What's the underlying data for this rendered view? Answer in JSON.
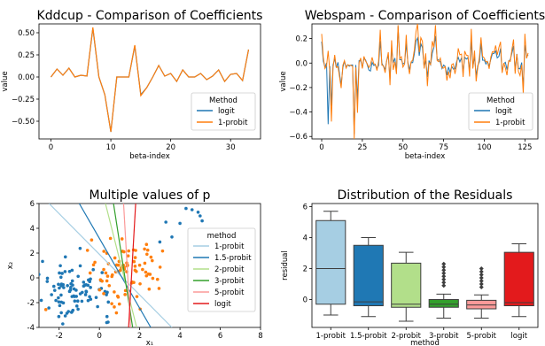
{
  "chart_data": [
    {
      "type": "line",
      "title": "Kddcup - Comparison of Coefficients",
      "xlabel": "beta-index",
      "ylabel": "value",
      "xlim": [
        -2,
        35
      ],
      "ylim": [
        -0.7,
        0.6
      ],
      "xticks": [
        0,
        10,
        20,
        30
      ],
      "yticks": [
        -0.5,
        -0.25,
        0.0,
        0.25,
        0.5
      ],
      "ytick_labels": [
        "−0.50",
        "−0.25",
        "0.00",
        "0.25",
        "0.50"
      ],
      "grid": false,
      "legend": {
        "title": "Method",
        "placement": "lower-right"
      },
      "series": [
        {
          "name": "logit",
          "color": "#1f77b4",
          "values": [
            0.0,
            0.09,
            0.02,
            0.1,
            0.0,
            0.02,
            0.01,
            0.55,
            0.0,
            -0.2,
            -0.62,
            0.0,
            0.0,
            0.0,
            0.35,
            -0.2,
            -0.12,
            0.0,
            0.13,
            0.01,
            0.04,
            -0.05,
            0.08,
            0.0,
            0.0,
            0.04,
            -0.03,
            0.01,
            0.08,
            -0.05,
            0.03,
            0.04,
            -0.04,
            0.31
          ]
        },
        {
          "name": "1-probit",
          "color": "#ff7f0e",
          "values": [
            0.0,
            0.09,
            0.02,
            0.1,
            0.0,
            0.02,
            0.01,
            0.56,
            0.0,
            -0.2,
            -0.62,
            0.0,
            0.0,
            0.0,
            0.36,
            -0.21,
            -0.12,
            0.0,
            0.13,
            0.01,
            0.04,
            -0.05,
            0.08,
            0.0,
            0.0,
            0.04,
            -0.03,
            0.01,
            0.08,
            -0.05,
            0.03,
            0.04,
            -0.04,
            0.31
          ]
        }
      ]
    },
    {
      "type": "line",
      "title": "Webspam - Comparison of Coefficients",
      "xlabel": "beta-index",
      "ylabel": "value",
      "xlim": [
        -6,
        133
      ],
      "ylim": [
        -0.62,
        0.32
      ],
      "xticks": [
        0,
        25,
        50,
        75,
        100,
        125
      ],
      "yticks": [
        -0.6,
        -0.4,
        -0.2,
        0.0,
        0.2
      ],
      "ytick_labels": [
        "−0.6",
        "−0.4",
        "−0.2",
        "0.0",
        "0.2"
      ],
      "grid": false,
      "legend": {
        "title": "Method",
        "placement": "lower-right"
      },
      "series": [
        {
          "name": "logit",
          "color": "#1f77b4"
        },
        {
          "name": "1-probit",
          "color": "#ff7f0e"
        }
      ]
    },
    {
      "type": "scatter",
      "title": "Multiple values of p",
      "xlabel": "x₁",
      "ylabel": "x₂",
      "xlim": [
        -3,
        8
      ],
      "ylim": [
        -4,
        6
      ],
      "xticks": [
        -2,
        0,
        2,
        4,
        6,
        8
      ],
      "yticks": [
        -4,
        -2,
        0,
        2,
        4,
        6
      ],
      "grid": false,
      "legend": {
        "title": "method",
        "placement": "right"
      },
      "point_colors": {
        "class_a": "#1f77b4",
        "class_b": "#ff7f0e"
      },
      "lines": [
        {
          "name": "1-probit",
          "color": "#a6cee3",
          "p1": [
            -2.5,
            6
          ],
          "p2": [
            3.6,
            -4
          ]
        },
        {
          "name": "1.5-probit",
          "color": "#1f78b4",
          "p1": [
            -1.0,
            6
          ],
          "p2": [
            2.55,
            -4
          ]
        },
        {
          "name": "2-probit",
          "color": "#b2df8a",
          "p1": [
            0.3,
            6
          ],
          "p2": [
            1.85,
            -4
          ]
        },
        {
          "name": "3-probit",
          "color": "#33a02c",
          "p1": [
            0.7,
            6
          ],
          "p2": [
            1.65,
            -4
          ]
        },
        {
          "name": "5-probit",
          "color": "#fb9a99",
          "p1": [
            1.2,
            6
          ],
          "p2": [
            1.55,
            -4
          ]
        },
        {
          "name": "logit",
          "color": "#e31a1c",
          "p1": [
            1.8,
            6
          ],
          "p2": [
            1.45,
            -4
          ]
        }
      ]
    },
    {
      "type": "box",
      "title": "Distribution of the Residuals",
      "xlabel": "method",
      "ylabel": "residual",
      "ylim": [
        -1.8,
        6.2
      ],
      "yticks": [
        0,
        2,
        4,
        6
      ],
      "grid": false,
      "categories": [
        "1-probit",
        "1.5-probit",
        "2-probit",
        "3-probit",
        "5-probit",
        "logit"
      ],
      "boxes": [
        {
          "whislo": -1.0,
          "q1": -0.3,
          "med": 2.0,
          "q3": 5.1,
          "whishi": 5.7,
          "color": "#a6cee3",
          "fliers": []
        },
        {
          "whislo": -1.1,
          "q1": -0.4,
          "med": -0.15,
          "q3": 3.5,
          "whishi": 4.0,
          "color": "#1f78b4",
          "fliers": []
        },
        {
          "whislo": -1.4,
          "q1": -0.5,
          "med": -0.3,
          "q3": 2.35,
          "whishi": 3.05,
          "color": "#b2df8a",
          "fliers": []
        },
        {
          "whislo": -1.2,
          "q1": -0.5,
          "med": -0.3,
          "q3": 0.0,
          "whishi": 0.35,
          "color": "#33a02c",
          "fliers": [
            0.9,
            1.1,
            1.3,
            1.5,
            1.7,
            1.9,
            2.1,
            2.3
          ]
        },
        {
          "whislo": -1.2,
          "q1": -0.6,
          "med": -0.35,
          "q3": -0.05,
          "whishi": 0.3,
          "color": "#fb9a99",
          "fliers": [
            0.8,
            1.0,
            1.2,
            1.4,
            1.6,
            1.8,
            2.0
          ]
        },
        {
          "whislo": -1.1,
          "q1": -0.4,
          "med": -0.2,
          "q3": 3.05,
          "whishi": 3.6,
          "color": "#e31a1c",
          "fliers": []
        }
      ]
    }
  ]
}
